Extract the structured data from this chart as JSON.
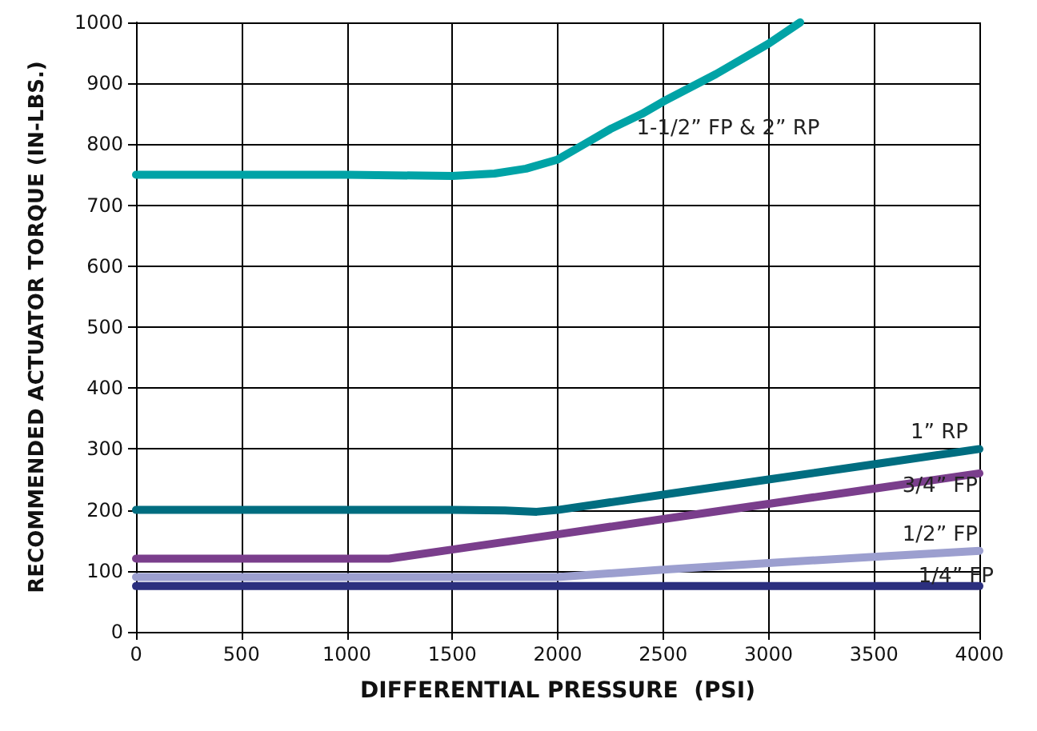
{
  "chart_data": {
    "type": "line",
    "xlabel": "DIFFERENTIAL PRESSURE  (PSI)",
    "ylabel": "RECOMMENDED ACTUATOR TORQUE (IN-LBS.)",
    "xlim": [
      0,
      4000
    ],
    "xticks": [
      0,
      500,
      1000,
      1500,
      2000,
      2500,
      3000,
      3500,
      4000
    ],
    "ylim": [
      0,
      1000
    ],
    "yticks": [
      0,
      100,
      200,
      300,
      400,
      500,
      600,
      700,
      800,
      900,
      1000
    ],
    "grid": true,
    "legend": false,
    "marker": "none",
    "line_style": "solid",
    "series": [
      {
        "name": "1-1/2” FP & 2” RP",
        "color": "#00a3a6",
        "x": [
          0,
          500,
          1000,
          1500,
          1700,
          1850,
          2000,
          2100,
          2250,
          2400,
          2500,
          2750,
          3000,
          3150
        ],
        "values": [
          750,
          750,
          750,
          748,
          752,
          760,
          775,
          795,
          825,
          850,
          870,
          915,
          965,
          1000
        ]
      },
      {
        "name": "1” RP",
        "color": "#006d80",
        "x": [
          0,
          500,
          1000,
          1500,
          1750,
          1900,
          2000,
          2500,
          3000,
          3500,
          4000
        ],
        "values": [
          200,
          200,
          200,
          200,
          199,
          197,
          200,
          225,
          250,
          275,
          300
        ]
      },
      {
        "name": "3/4” FP",
        "color": "#7a3e8c",
        "x": [
          0,
          500,
          1000,
          1200,
          1500,
          2000,
          2500,
          3000,
          3500,
          4000
        ],
        "values": [
          120,
          120,
          120,
          120,
          135,
          160,
          185,
          210,
          235,
          260
        ]
      },
      {
        "name": "1/2” FP",
        "color": "#9c9fcf",
        "x": [
          0,
          500,
          1000,
          1500,
          2000,
          2500,
          3000,
          3500,
          4000
        ],
        "values": [
          90,
          90,
          90,
          90,
          90,
          102,
          113,
          123,
          133
        ]
      },
      {
        "name": "1/4” FP",
        "color": "#2b2f7e",
        "x": [
          0,
          1000,
          2000,
          3000,
          4000
        ],
        "values": [
          75,
          75,
          75,
          75,
          75
        ]
      }
    ]
  }
}
